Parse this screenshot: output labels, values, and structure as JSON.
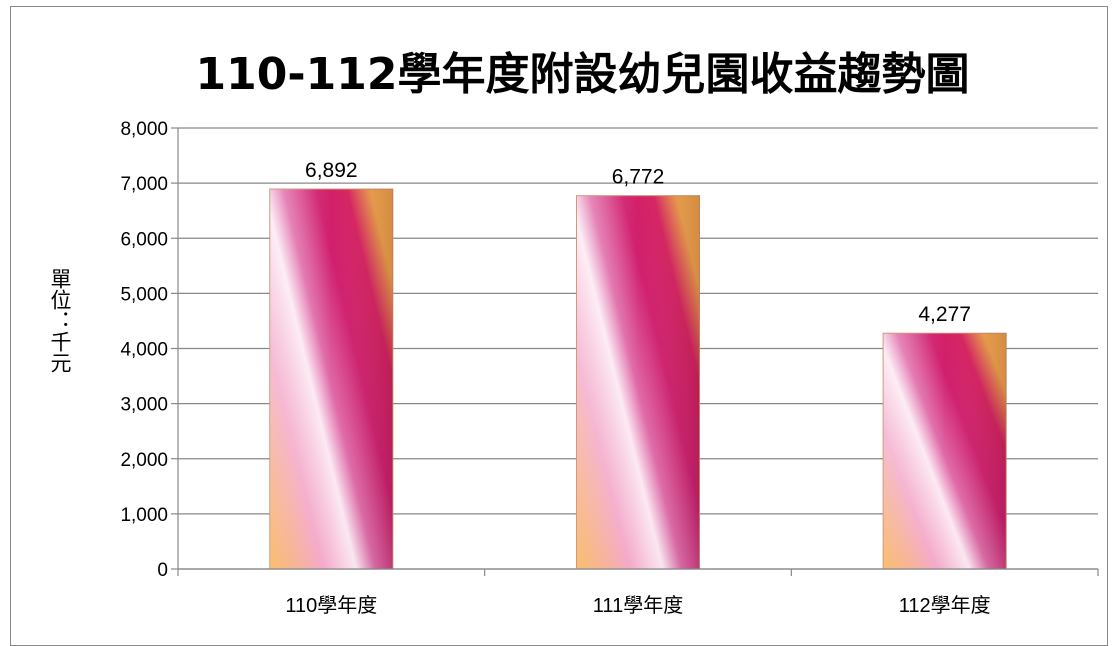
{
  "chart_data": {
    "type": "bar",
    "title": "110-112學年度附設幼兒園收益趨勢圖",
    "ylabel": "單位：千元",
    "xlabel": "",
    "categories": [
      "110學年度",
      "111學年度",
      "112學年度"
    ],
    "values": [
      6892,
      6772,
      4277
    ],
    "value_labels": [
      "6,892",
      "6,772",
      "4,277"
    ],
    "ylim": [
      0,
      8000
    ],
    "yticks": [
      0,
      1000,
      2000,
      3000,
      4000,
      5000,
      6000,
      7000,
      8000
    ],
    "ytick_labels": [
      "0",
      "1,000",
      "2,000",
      "3,000",
      "4,000",
      "5,000",
      "6,000",
      "7,000",
      "8,000"
    ],
    "grid": true,
    "legend": "none",
    "colors": {
      "orange": "#f7a941",
      "pink_light": "#fbe3f0",
      "magenta": "#c8207a",
      "crimson": "#d81b5e",
      "gridline": "#888888"
    }
  }
}
